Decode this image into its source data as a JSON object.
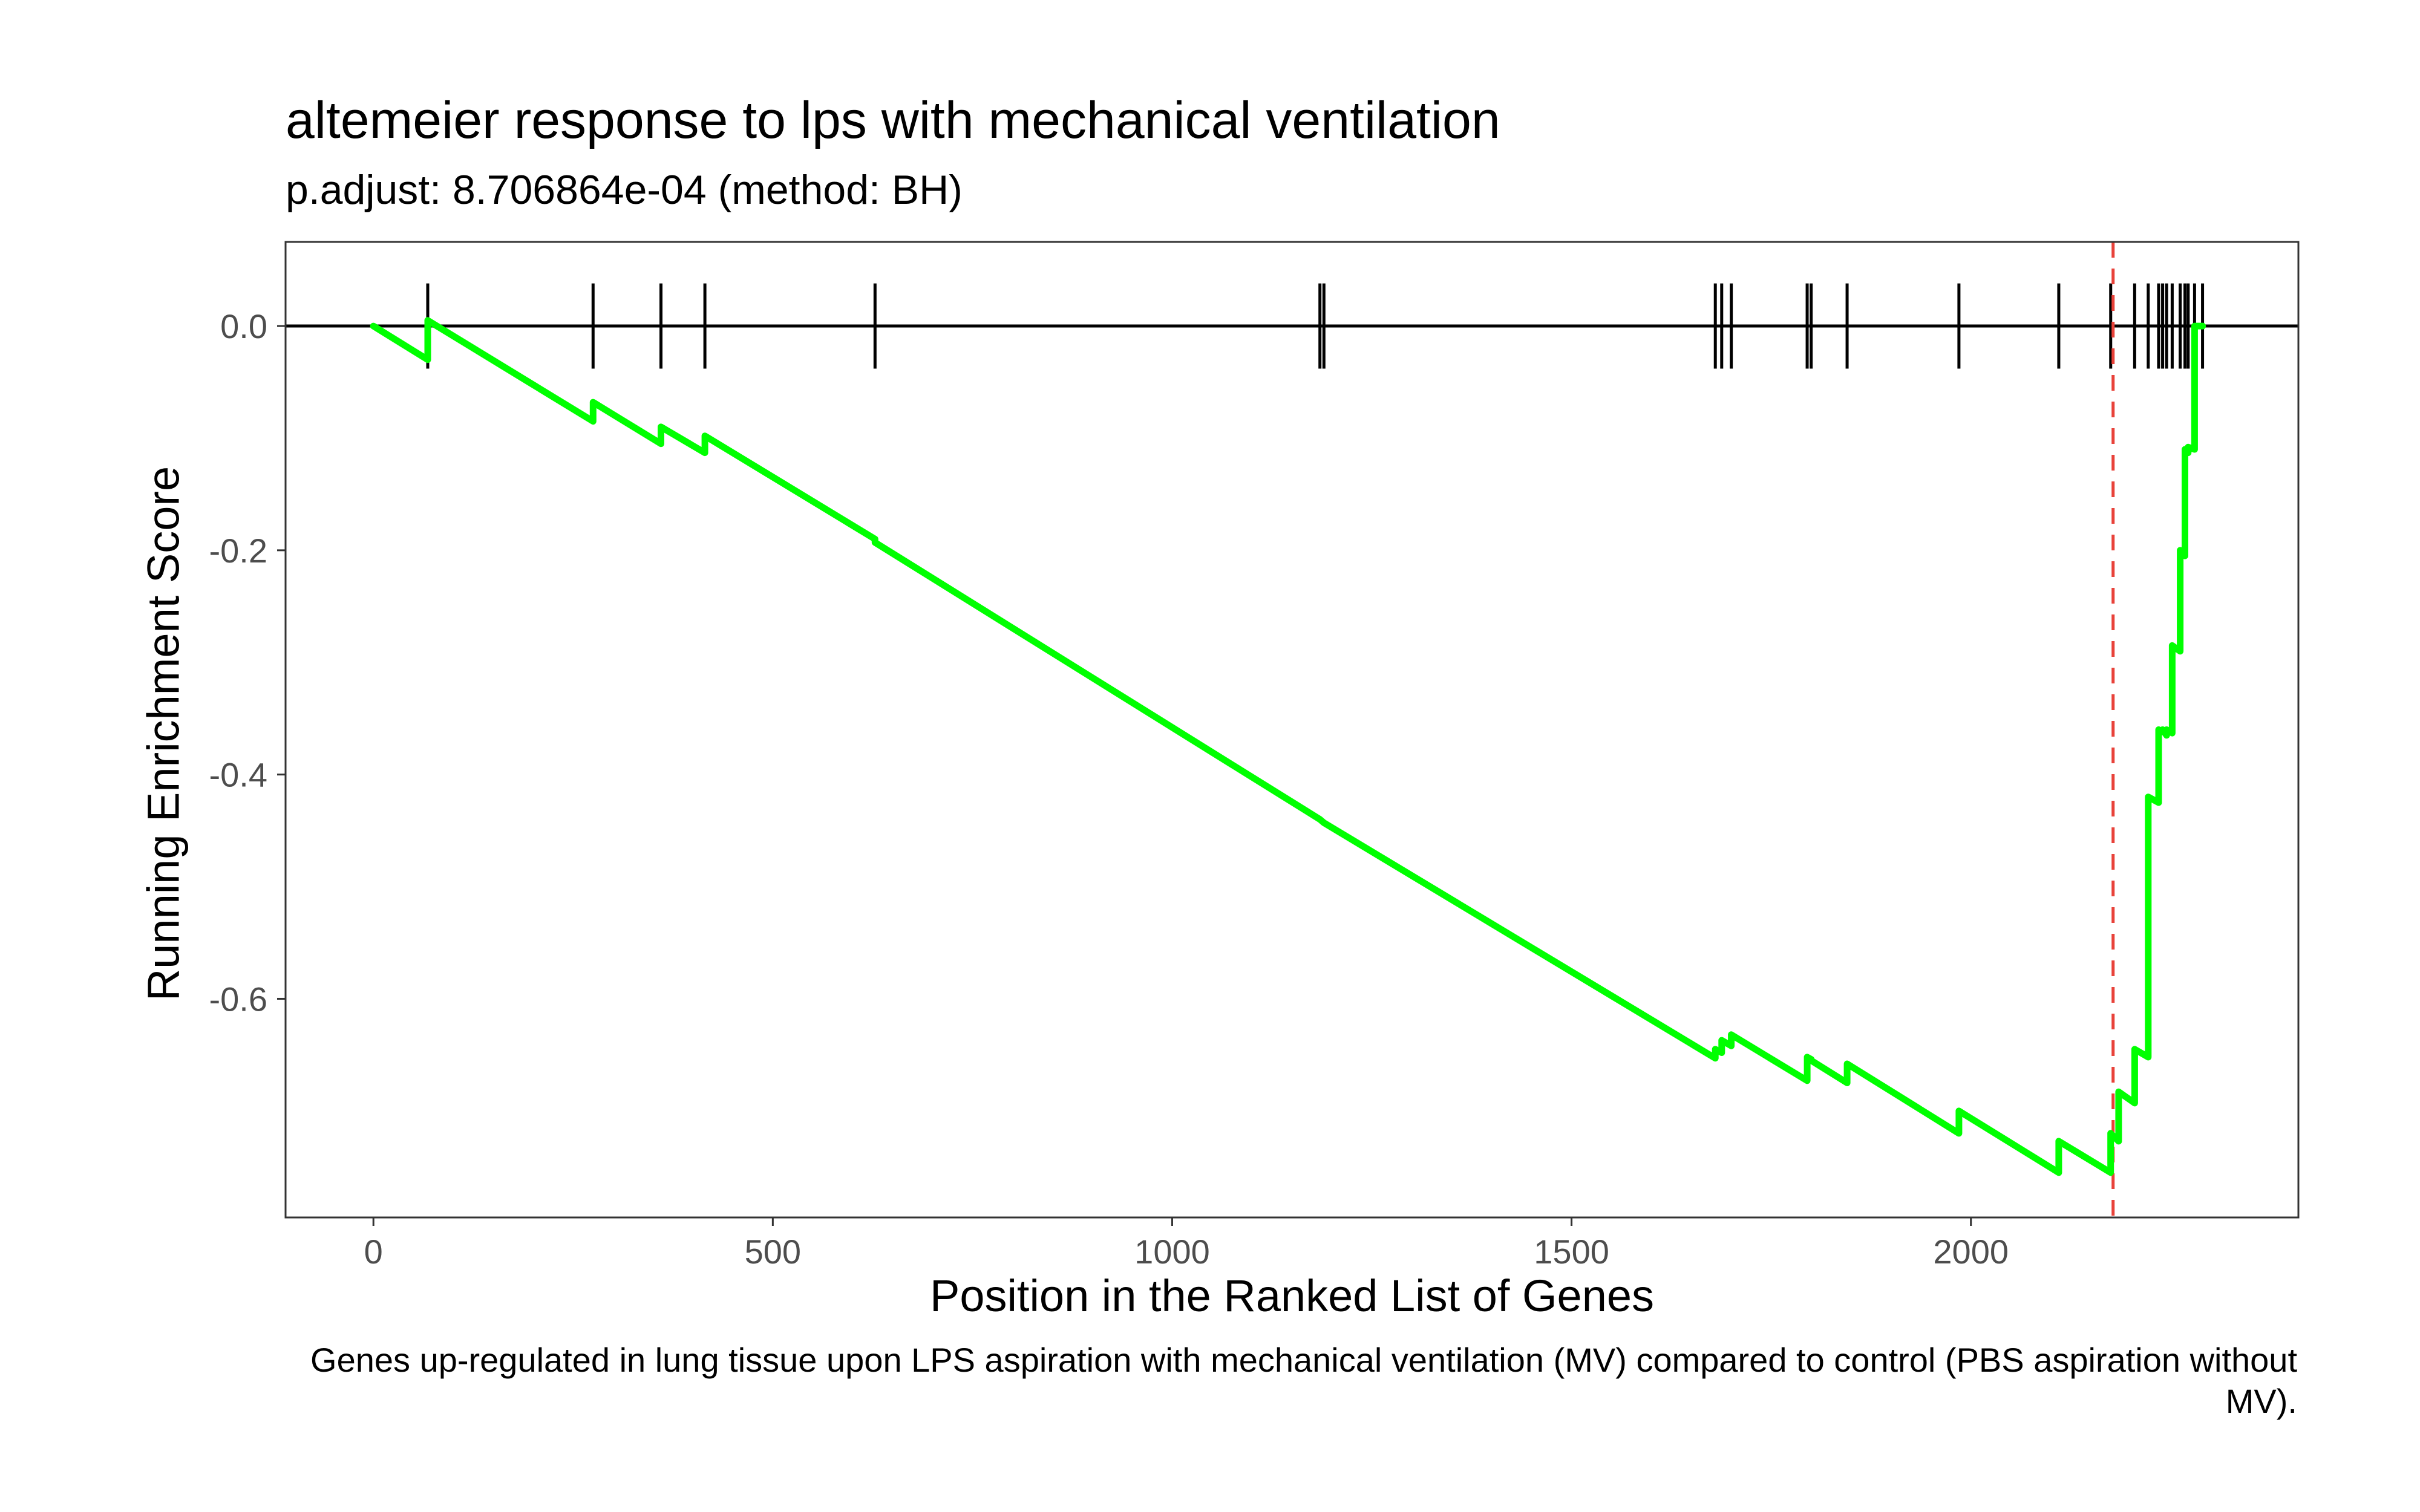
{
  "chart_data": {
    "type": "line",
    "title": "altemeier response to lps with mechanical ventilation",
    "subtitle": "p.adjust: 8.706864e-04 (method: BH)",
    "caption": "Genes up-regulated in lung tissue upon LPS aspiration with mechanical ventilation (MV) compared to control (PBS aspiration without MV).",
    "xlabel": "Position in the Ranked List of Genes",
    "ylabel": "Running Enrichment Score",
    "xlim": [
      -110,
      2410
    ],
    "ylim": [
      -0.795,
      0.075
    ],
    "x_ticks": [
      0,
      500,
      1000,
      1500,
      2000
    ],
    "x_tick_labels": [
      "0",
      "500",
      "1000",
      "1500",
      "2000"
    ],
    "y_ticks": [
      0.0,
      -0.2,
      -0.4,
      -0.6
    ],
    "y_tick_labels": [
      "0.0",
      "-0.2",
      "-0.4",
      "-0.6"
    ],
    "grid": false,
    "series": [
      {
        "color": "#00ff00",
        "x": [
          0,
          68,
          68,
          275,
          275,
          360,
          360,
          415,
          415,
          628,
          628,
          1185,
          1185,
          1190,
          1190,
          1680,
          1680,
          1688,
          1688,
          1700,
          1700,
          1795,
          1795,
          1800,
          1800,
          1845,
          1845,
          1985,
          1985,
          2110,
          2110,
          2175,
          2175,
          2185,
          2185,
          2205,
          2205,
          2222,
          2222,
          2235,
          2235,
          2240,
          2240,
          2245,
          2245,
          2252,
          2252,
          2262,
          2262,
          2268,
          2268,
          2272,
          2272,
          2280,
          2280,
          2290
        ],
        "y": [
          0.0,
          -0.03,
          0.005,
          -0.085,
          -0.068,
          -0.105,
          -0.09,
          -0.113,
          -0.098,
          -0.19,
          -0.193,
          -0.44,
          -0.44,
          -0.443,
          -0.443,
          -0.653,
          -0.645,
          -0.648,
          -0.637,
          -0.642,
          -0.632,
          -0.673,
          -0.652,
          -0.654,
          -0.655,
          -0.675,
          -0.658,
          -0.72,
          -0.7,
          -0.755,
          -0.727,
          -0.755,
          -0.72,
          -0.727,
          -0.683,
          -0.693,
          -0.645,
          -0.652,
          -0.42,
          -0.425,
          -0.36,
          -0.362,
          -0.36,
          -0.365,
          -0.36,
          -0.363,
          -0.285,
          -0.29,
          -0.2,
          -0.205,
          -0.11,
          -0.113,
          -0.108,
          -0.11,
          0.0,
          0.0
        ]
      }
    ],
    "gene_hits": [
      68,
      275,
      360,
      415,
      628,
      1185,
      1190,
      1680,
      1688,
      1700,
      1795,
      1800,
      1845,
      1985,
      2110,
      2175,
      2205,
      2222,
      2235,
      2240,
      2245,
      2252,
      2262,
      2268,
      2272,
      2280,
      2290
    ],
    "max_deviation_x": 2178,
    "zero_line_y": 0.0,
    "colors": {
      "line": "#00ff00",
      "hits": "#000000",
      "max_deviation": "#e8423a"
    }
  }
}
